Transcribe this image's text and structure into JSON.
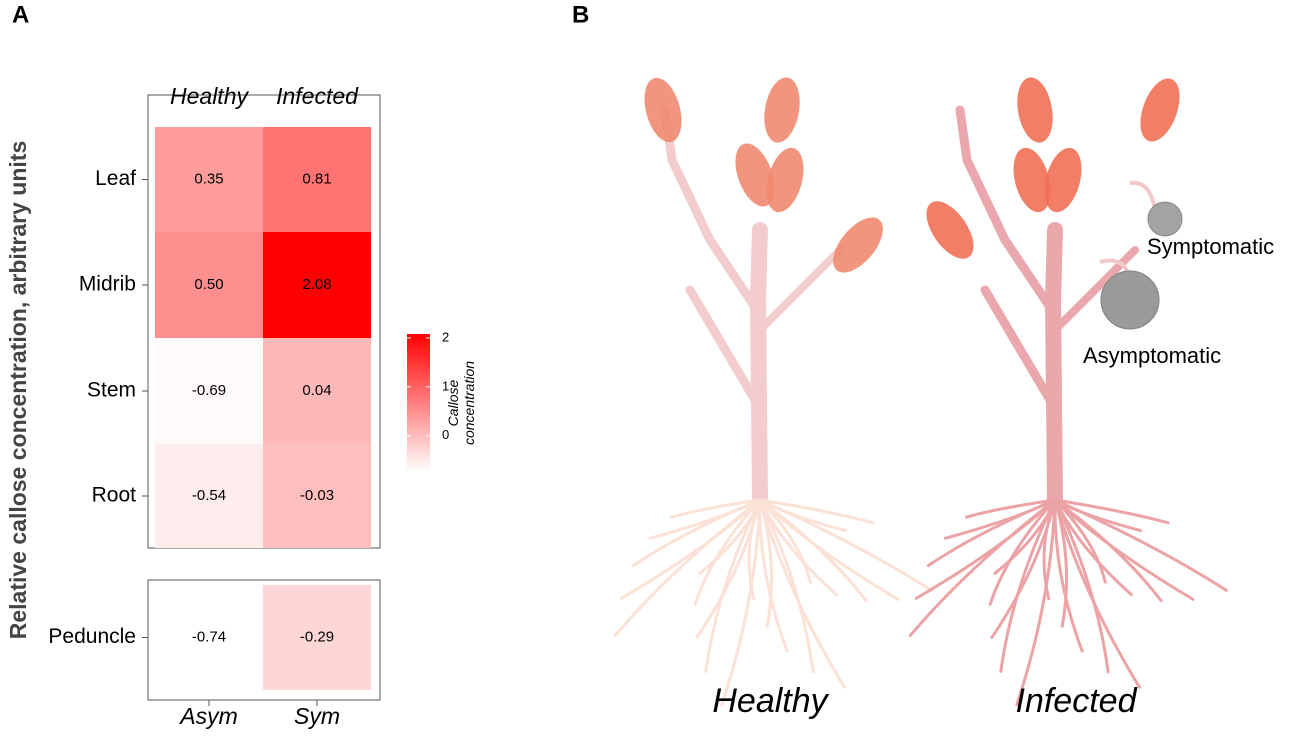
{
  "panel_labels": [
    "A",
    "B"
  ],
  "chart_data": {
    "type": "heatmap",
    "ylabel": "Relative callose concentration, arbitrary units",
    "top_columns": [
      "Healthy",
      "Infected"
    ],
    "bottom_columns": [
      "Asym",
      "Sym"
    ],
    "rows": [
      "Leaf",
      "Midrib",
      "Stem",
      "Root",
      "Peduncle"
    ],
    "values": [
      [
        0.35,
        0.81
      ],
      [
        0.5,
        2.08
      ],
      [
        -0.69,
        0.04
      ],
      [
        -0.54,
        -0.03
      ],
      [
        -0.74,
        -0.29
      ]
    ],
    "value_labels": [
      [
        "0.35",
        "0.81"
      ],
      [
        "0.50",
        "2.08"
      ],
      [
        "-0.69",
        "0.04"
      ],
      [
        "-0.54",
        "-0.03"
      ],
      [
        "-0.74",
        "-0.29"
      ]
    ],
    "colorbar_title": "Callose concentration",
    "clim": [
      -0.74,
      2.08
    ],
    "cticks": [
      0,
      1,
      2
    ],
    "color_low": "#ffffff",
    "color_high": "#ff0000"
  },
  "illustration": {
    "plants": [
      "Healthy",
      "Infected"
    ],
    "annotations": [
      "Symptomatic",
      "Asymptomatic"
    ]
  }
}
